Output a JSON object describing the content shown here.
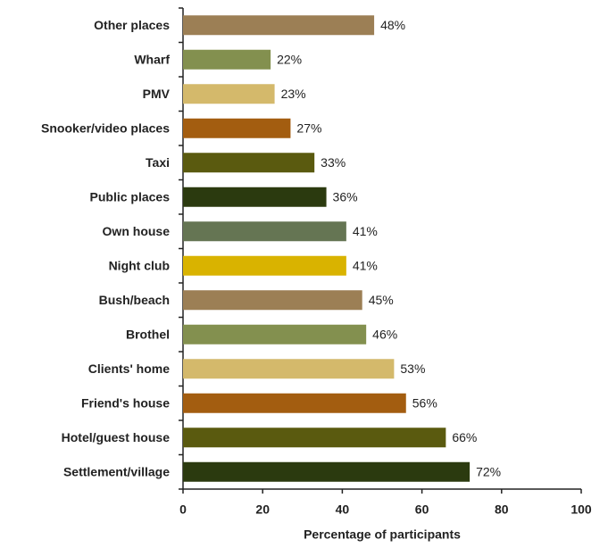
{
  "chart_data": {
    "type": "bar",
    "orientation": "horizontal",
    "categories": [
      "Other places",
      "Wharf",
      "PMV",
      "Snooker/video places",
      "Taxi",
      "Public places",
      "Own house",
      "Night club",
      "Bush/beach",
      "Brothel",
      "Clients' home",
      "Friend's house",
      "Hotel/guest house",
      "Settlement/village"
    ],
    "values": [
      48,
      22,
      23,
      27,
      33,
      36,
      41,
      41,
      45,
      46,
      53,
      56,
      66,
      72
    ],
    "value_labels": [
      "48%",
      "22%",
      "23%",
      "27%",
      "33%",
      "36%",
      "41%",
      "41%",
      "45%",
      "46%",
      "53%",
      "56%",
      "66%",
      "72%"
    ],
    "colors": [
      "#9c7f55",
      "#83904f",
      "#d4b96b",
      "#a35d10",
      "#5a5a0f",
      "#2b3a0f",
      "#657553",
      "#d9b300",
      "#9c7f55",
      "#83904f",
      "#d4b96b",
      "#a35d10",
      "#5a5a0f",
      "#2b3a0f"
    ],
    "xlim": [
      0,
      100
    ],
    "xticks": [
      0,
      20,
      40,
      60,
      80,
      100
    ],
    "xlabel": "Percentage of participants"
  }
}
